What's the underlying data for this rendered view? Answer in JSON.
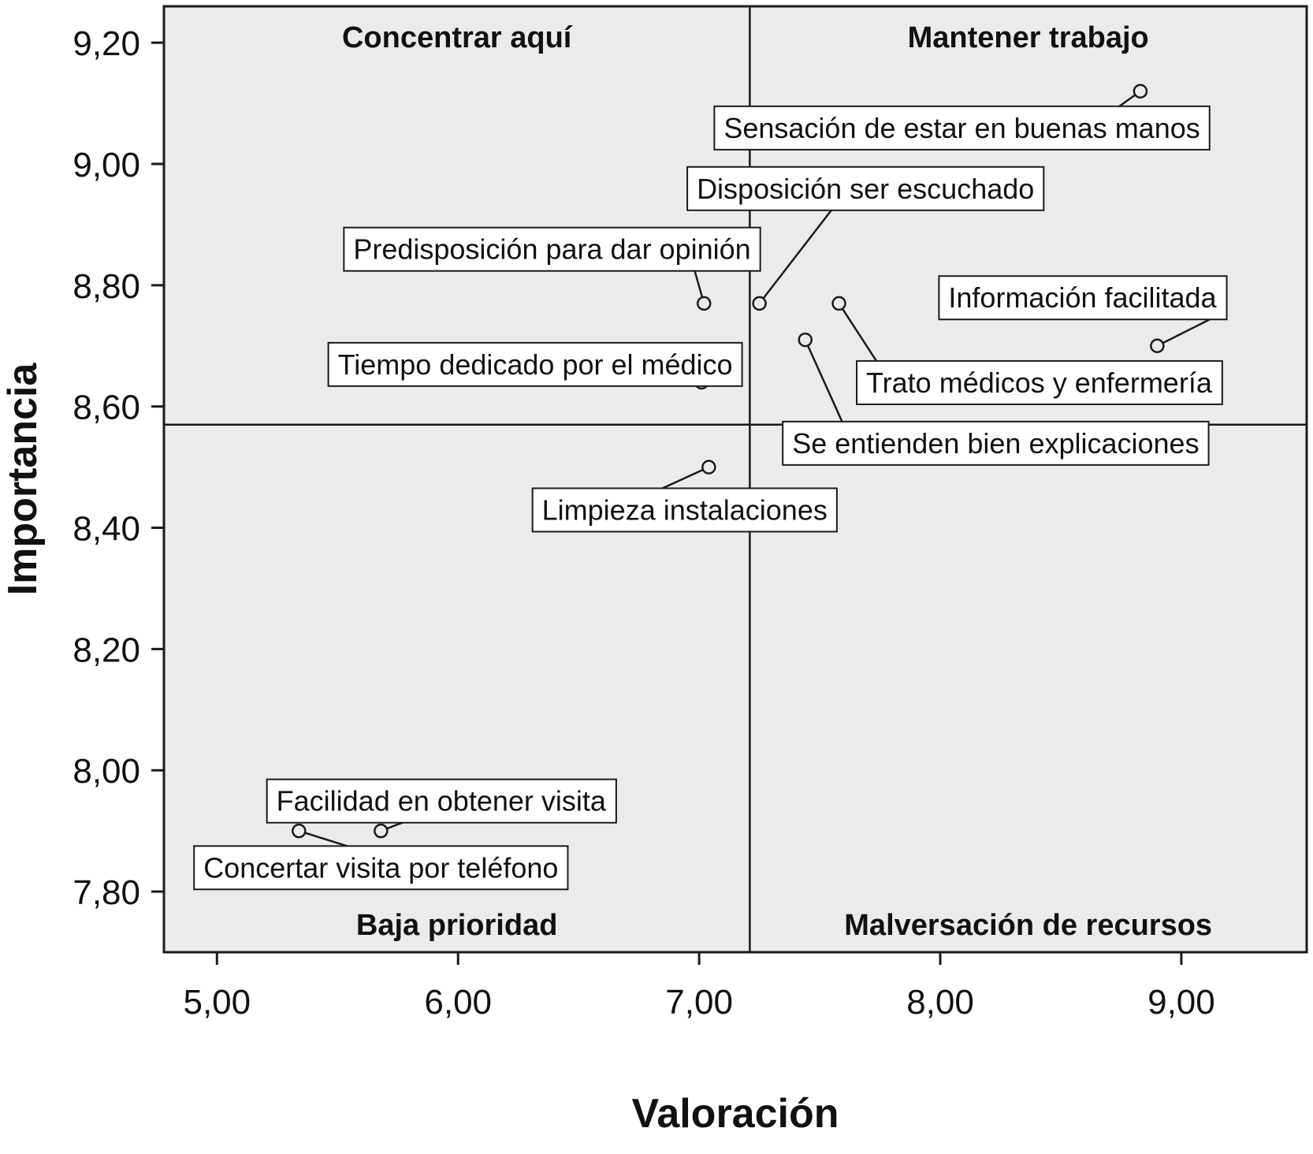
{
  "chart_data": {
    "type": "scatter",
    "title": "",
    "xlabel": "Valoración",
    "ylabel": "Importancia",
    "xlim": [
      4.78,
      9.52
    ],
    "ylim": [
      7.7,
      9.26
    ],
    "grid": false,
    "x_ticks": [
      {
        "value": 5.0,
        "label": "5,00"
      },
      {
        "value": 6.0,
        "label": "6,00"
      },
      {
        "value": 7.0,
        "label": "7,00"
      },
      {
        "value": 8.0,
        "label": "8,00"
      },
      {
        "value": 9.0,
        "label": "9,00"
      }
    ],
    "y_ticks": [
      {
        "value": 7.8,
        "label": "7,80"
      },
      {
        "value": 8.0,
        "label": "8,00"
      },
      {
        "value": 8.2,
        "label": "8,20"
      },
      {
        "value": 8.4,
        "label": "8,40"
      },
      {
        "value": 8.6,
        "label": "8,60"
      },
      {
        "value": 8.8,
        "label": "8,80"
      },
      {
        "value": 9.0,
        "label": "9,00"
      },
      {
        "value": 9.2,
        "label": "9,20"
      }
    ],
    "divider": {
      "x": 7.21,
      "y": 8.57
    },
    "quadrants": [
      {
        "label": "Concentrar aquí",
        "position": "top-left"
      },
      {
        "label": "Mantener trabajo",
        "position": "top-right"
      },
      {
        "label": "Baja prioridad",
        "position": "bottom-left"
      },
      {
        "label": "Malversación de recursos",
        "position": "bottom-right"
      }
    ],
    "points": [
      {
        "label": "Sensación de estar en buenas manos",
        "x": 8.83,
        "y": 9.12,
        "label_x": 8.09,
        "label_y": 9.06,
        "anchor_x": 8.69,
        "anchor_y": 9.08
      },
      {
        "label": "Disposición ser escuchado",
        "x": 7.25,
        "y": 8.77,
        "label_x": 7.69,
        "label_y": 8.96,
        "anchor_x": 7.58,
        "anchor_y": 8.94
      },
      {
        "label": "Predisposición para dar opinión",
        "x": 7.02,
        "y": 8.77,
        "label_x": 6.39,
        "label_y": 8.86,
        "anchor_x": 6.97,
        "anchor_y": 8.84
      },
      {
        "label": "Información facilitada",
        "x": 8.9,
        "y": 8.7,
        "label_x": 8.59,
        "label_y": 8.78,
        "anchor_x": 9.15,
        "anchor_y": 8.75
      },
      {
        "label": "Trato médicos y enfermería",
        "x": 7.58,
        "y": 8.77,
        "label_x": 8.41,
        "label_y": 8.64,
        "anchor_x": 7.76,
        "anchor_y": 8.66
      },
      {
        "label": "Tiempo dedicado por el médico",
        "x": 7.01,
        "y": 8.64,
        "label_x": 6.32,
        "label_y": 8.67,
        "anchor_x": 6.88,
        "anchor_y": 8.64
      },
      {
        "label": "Se entienden bien explicaciones",
        "x": 7.44,
        "y": 8.71,
        "label_x": 8.23,
        "label_y": 8.54,
        "anchor_x": 7.61,
        "anchor_y": 8.56
      },
      {
        "label": "Limpieza instalaciones",
        "x": 7.04,
        "y": 8.5,
        "label_x": 6.94,
        "label_y": 8.43,
        "anchor_x": 6.82,
        "anchor_y": 8.46
      },
      {
        "label": "Facilidad en obtener visita",
        "x": 5.68,
        "y": 7.9,
        "label_x": 5.93,
        "label_y": 7.95,
        "anchor_x": 5.81,
        "anchor_y": 7.92
      },
      {
        "label": "Concertar visita por teléfono",
        "x": 5.34,
        "y": 7.9,
        "label_x": 5.68,
        "label_y": 7.84,
        "anchor_x": 5.58,
        "anchor_y": 7.87
      }
    ],
    "colors": {
      "plot_bg": "#ebebeb",
      "line": "#1a1a1a",
      "label_box_bg": "#ffffff",
      "outer_bg": "#ffffff"
    }
  }
}
